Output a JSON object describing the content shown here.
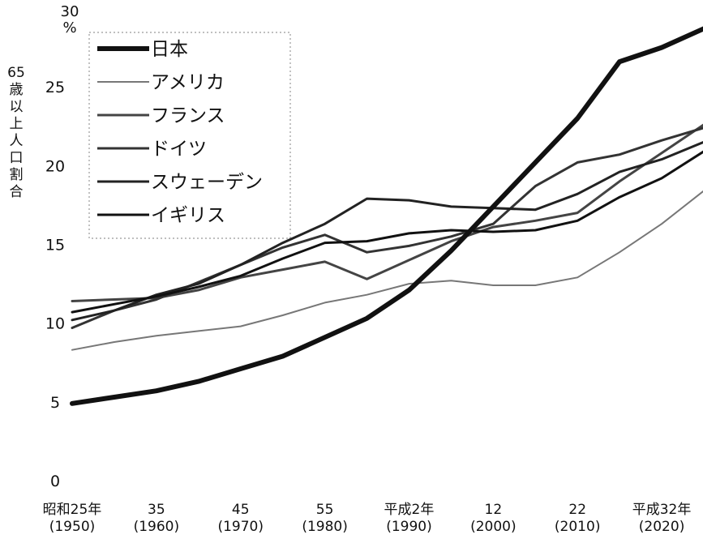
{
  "chart_data": {
    "type": "line",
    "title": "",
    "ylabel": "65歳以上人口割合",
    "yunit_top": "30",
    "yunit": "%",
    "ylim": [
      0,
      30
    ],
    "yticks": [
      0,
      5,
      10,
      15,
      20,
      25
    ],
    "x": [
      1950,
      1955,
      1960,
      1965,
      1970,
      1975,
      1980,
      1985,
      1990,
      1995,
      2000,
      2005,
      2010,
      2015,
      2020,
      2025
    ],
    "xticks": [
      {
        "x": 1950,
        "top": "昭和25年",
        "bottom": "(1950)"
      },
      {
        "x": 1960,
        "top": "35",
        "bottom": "(1960)"
      },
      {
        "x": 1970,
        "top": "45",
        "bottom": "(1970)"
      },
      {
        "x": 1980,
        "top": "55",
        "bottom": "(1980)"
      },
      {
        "x": 1990,
        "top": "平成2年",
        "bottom": "(1990)"
      },
      {
        "x": 2000,
        "top": "12",
        "bottom": "(2000)"
      },
      {
        "x": 2010,
        "top": "22",
        "bottom": "(2010)"
      },
      {
        "x": 2020,
        "top": "平成32年",
        "bottom": "(2020)"
      }
    ],
    "legend_position": "top-left",
    "grid": false,
    "series": [
      {
        "name": "日本",
        "color": "#111111",
        "width": 6,
        "values": [
          4.9,
          5.3,
          5.7,
          6.3,
          7.1,
          7.9,
          9.1,
          10.3,
          12.1,
          14.6,
          17.4,
          20.2,
          23.0,
          26.6,
          27.5,
          28.7
        ]
      },
      {
        "name": "アメリカ",
        "color": "#777777",
        "width": 2,
        "values": [
          8.3,
          8.8,
          9.2,
          9.5,
          9.8,
          10.5,
          11.3,
          11.8,
          12.5,
          12.7,
          12.4,
          12.4,
          12.9,
          14.5,
          16.3,
          18.4
        ]
      },
      {
        "name": "フランス",
        "color": "#444444",
        "width": 3,
        "values": [
          11.4,
          11.5,
          11.6,
          12.1,
          12.9,
          13.4,
          13.9,
          12.8,
          14.0,
          15.2,
          16.1,
          16.5,
          17.0,
          19.0,
          20.8,
          22.6
        ]
      },
      {
        "name": "ドイツ",
        "color": "#333333",
        "width": 3,
        "values": [
          9.7,
          10.8,
          11.5,
          12.6,
          13.7,
          14.8,
          15.6,
          14.5,
          14.9,
          15.5,
          16.3,
          18.7,
          20.2,
          20.7,
          21.6,
          22.4
        ]
      },
      {
        "name": "スウェーデン",
        "color": "#222222",
        "width": 3,
        "values": [
          10.2,
          10.8,
          11.8,
          12.5,
          13.7,
          15.1,
          16.3,
          17.9,
          17.8,
          17.4,
          17.3,
          17.2,
          18.2,
          19.6,
          20.4,
          21.5
        ]
      },
      {
        "name": "イギリス",
        "color": "#111111",
        "width": 3,
        "values": [
          10.7,
          11.2,
          11.7,
          12.3,
          13.0,
          14.1,
          15.1,
          15.2,
          15.7,
          15.9,
          15.8,
          15.9,
          16.5,
          18.0,
          19.2,
          20.9
        ]
      }
    ]
  }
}
